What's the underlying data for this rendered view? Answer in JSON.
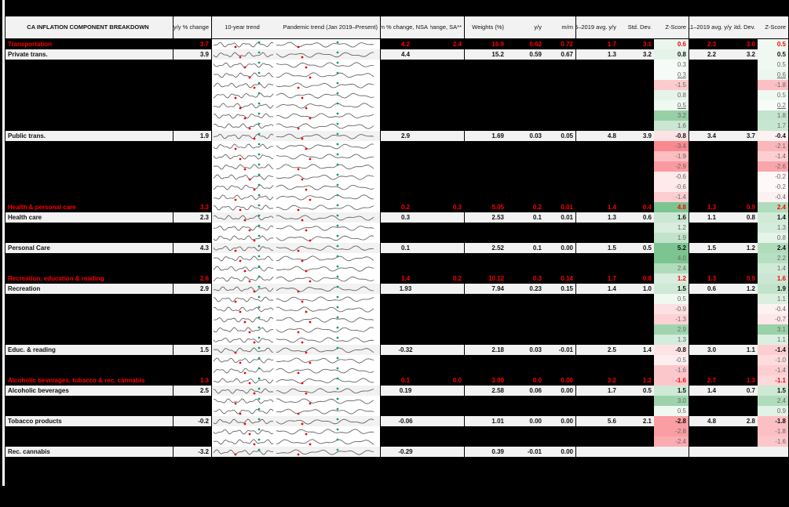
{
  "header": {
    "title": "CA INFLATION COMPONENT BREAKDOWN",
    "yy_change": "y/y % change",
    "trend10": "10-year trend",
    "pandemic_trend": "Pandemic trend (Jan 2019–Present)",
    "mm_nsa": "m/m % change, NSA",
    "mm_sa": "m/m % change, SA**",
    "weights": "Weights (%)",
    "yy": "y/y",
    "mm": "m/m",
    "avg1519": "2015–2019 avg. y/y",
    "std1": "Std. Dev.",
    "z1": "Z-Score",
    "avg1119": "2011–2019 avg. y/y",
    "std2": "Std. Dev.",
    "z2": "Z-Score"
  },
  "colors": {
    "category_text": "#ff0000",
    "sub_bg": "#f2f2f2",
    "green_strong": "#7cc490",
    "red_strong": "#f8747c"
  },
  "rows": [
    {
      "type": "cat",
      "name": "Transportation",
      "yy": "3.7",
      "mm_nsa": "4.2",
      "mm_sa": "2.4",
      "w": "16.9",
      "wyy": "0.62",
      "wmm": "0.72",
      "avg1": "1.7",
      "sd1": "3.1",
      "z1": "0.6",
      "avg2": "2.3",
      "sd2": "3.0",
      "z2": "0.5"
    },
    {
      "type": "sub",
      "name": "Private trans.",
      "yy": "3.9",
      "mm_nsa": "4.4",
      "mm_sa": "",
      "w": "15.2",
      "wyy": "0.59",
      "wmm": "0.67",
      "avg1": "1.3",
      "sd1": "3.2",
      "z1": "0.8",
      "avg2": "2.2",
      "sd2": "3.2",
      "z2": "0.5"
    },
    {
      "type": "blank",
      "z1": "0.3",
      "z2": "0.5"
    },
    {
      "type": "blank",
      "z1": "0.3",
      "z2": "0.6",
      "ul": true
    },
    {
      "type": "blank",
      "z1": "-1.5",
      "z2": "-1.8"
    },
    {
      "type": "blank",
      "z1": "0.8",
      "z2": "0.5"
    },
    {
      "type": "blank",
      "z1": "0.5",
      "z2": "0.2",
      "ul": true
    },
    {
      "type": "blank",
      "z1": "3.2",
      "z2": "1.8"
    },
    {
      "type": "blank",
      "z1": "1.6",
      "z2": "1.7"
    },
    {
      "type": "sub",
      "name": "Public trans.",
      "yy": "1.9",
      "mm_nsa": "2.9",
      "mm_sa": "",
      "w": "1.69",
      "wyy": "0.03",
      "wmm": "0.05",
      "avg1": "4.8",
      "sd1": "3.9",
      "z1": "-0.8",
      "avg2": "3.4",
      "sd2": "3.7",
      "z2": "-0.4"
    },
    {
      "type": "blank",
      "z1": "-3.4",
      "z2": "-2.1"
    },
    {
      "type": "blank",
      "z1": "-1.9",
      "z2": "-1.4"
    },
    {
      "type": "blank",
      "z1": "-2.9",
      "z2": "-2.6"
    },
    {
      "type": "blank",
      "z1": "-0.6",
      "z2": "-0.2"
    },
    {
      "type": "blank",
      "z1": "-0.6",
      "z2": "-0.2"
    },
    {
      "type": "blank",
      "z1": "-1.4",
      "z2": "-0.4"
    },
    {
      "type": "cat",
      "name": "Health & personal care",
      "yy": "3.3",
      "mm_nsa": "0.2",
      "mm_sa": "0.3",
      "w": "5.05",
      "wyy": "0.2",
      "wmm": "0.01",
      "avg1": "1.4",
      "sd1": "0.4",
      "z1": "4.8",
      "avg2": "1.3",
      "sd2": "0.9",
      "z2": "2.4"
    },
    {
      "type": "sub",
      "name": "Health care",
      "yy": "2.3",
      "mm_nsa": "0.3",
      "mm_sa": "",
      "w": "2.53",
      "wyy": "0.1",
      "wmm": "0.01",
      "avg1": "1.3",
      "sd1": "0.6",
      "z1": "1.6",
      "avg2": "1.1",
      "sd2": "0.8",
      "z2": "1.4"
    },
    {
      "type": "blank",
      "z1": "1.2",
      "z2": "1.3"
    },
    {
      "type": "blank",
      "z1": "1.9",
      "z2": "0.8"
    },
    {
      "type": "sub",
      "name": "Personal Care",
      "yy": "4.3",
      "mm_nsa": "0.1",
      "mm_sa": "",
      "w": "2.52",
      "wyy": "0.1",
      "wmm": "0.00",
      "avg1": "1.5",
      "sd1": "0.5",
      "z1": "5.2",
      "avg2": "1.5",
      "sd2": "1.2",
      "z2": "2.4"
    },
    {
      "type": "blank",
      "z1": "4.0",
      "z2": "2.2"
    },
    {
      "type": "blank",
      "z1": "2.4",
      "z2": "1.4"
    },
    {
      "type": "cat",
      "name": "Recreation, education & reading",
      "yy": "2.6",
      "mm_nsa": "1.4",
      "mm_sa": "0.2",
      "w": "10.12",
      "wyy": "0.3",
      "wmm": "0.14",
      "avg1": "1.7",
      "sd1": "0.8",
      "z1": "1.2",
      "avg2": "1.3",
      "sd2": "0.9",
      "z2": "1.6"
    },
    {
      "type": "sub",
      "name": "Recreation",
      "yy": "2.9",
      "mm_nsa": "1.93",
      "mm_sa": "",
      "w": "7.94",
      "wyy": "0.23",
      "wmm": "0.15",
      "avg1": "1.4",
      "sd1": "1.0",
      "z1": "1.5",
      "avg2": "0.6",
      "sd2": "1.2",
      "z2": "1.9"
    },
    {
      "type": "blank",
      "z1": "0.5",
      "z2": "1.1"
    },
    {
      "type": "blank",
      "z1": "-0.9",
      "z2": "-0.4"
    },
    {
      "type": "blank",
      "z1": "-1.3",
      "z2": "-0.7"
    },
    {
      "type": "blank",
      "z1": "2.9",
      "z2": "3.1"
    },
    {
      "type": "blank",
      "z1": "1.3",
      "z2": "1.1"
    },
    {
      "type": "sub",
      "name": "Educ. & reading",
      "yy": "1.5",
      "mm_nsa": "-0.32",
      "mm_sa": "",
      "w": "2.18",
      "wyy": "0.03",
      "wmm": "-0.01",
      "avg1": "2.5",
      "sd1": "1.4",
      "z1": "-0.8",
      "avg2": "3.0",
      "sd2": "1.1",
      "z2": "-1.4"
    },
    {
      "type": "blank",
      "z1": "-0.5",
      "z2": "-1.0"
    },
    {
      "type": "blank",
      "z1": "-1.6",
      "z2": "-1.4"
    },
    {
      "type": "cat",
      "name": "Alcoholic beverages, tobacco & rec. cannabis",
      "yy": "1.3",
      "mm_nsa": "0.1",
      "mm_sa": "0.0",
      "w": "3.99",
      "wyy": "0.0",
      "wmm": "0.00",
      "avg1": "3.2",
      "sd1": "1.2",
      "z1": "-1.6",
      "avg2": "2.7",
      "sd2": "1.3",
      "z2": "-1.1"
    },
    {
      "type": "sub",
      "name": "Alcoholic beverages",
      "yy": "2.5",
      "mm_nsa": "0.19",
      "mm_sa": "",
      "w": "2.58",
      "wyy": "0.06",
      "wmm": "0.00",
      "avg1": "1.7",
      "sd1": "0.5",
      "z1": "1.5",
      "avg2": "1.4",
      "sd2": "0.7",
      "z2": "1.5"
    },
    {
      "type": "blank",
      "z1": "3.0",
      "z2": "2.4"
    },
    {
      "type": "blank",
      "z1": "0.5",
      "z2": "0.9"
    },
    {
      "type": "sub",
      "name": "Tobacco products",
      "yy": "-0.2",
      "mm_nsa": "-0.06",
      "mm_sa": "",
      "w": "1.01",
      "wyy": "0.00",
      "wmm": "0.00",
      "avg1": "5.6",
      "sd1": "2.1",
      "z1": "-2.8",
      "avg2": "4.8",
      "sd2": "2.8",
      "z2": "-1.8"
    },
    {
      "type": "blank",
      "z1": "-2.8",
      "z2": "-1.8"
    },
    {
      "type": "blank",
      "z1": "-2.4",
      "z2": "-1.6"
    },
    {
      "type": "sub",
      "name": "Rec. cannabis",
      "yy": "-3.2",
      "mm_nsa": "-0.29",
      "mm_sa": "",
      "w": "0.39",
      "wyy": "-0.01",
      "wmm": "0.00",
      "avg1": "",
      "sd1": "",
      "z1": "",
      "avg2": "",
      "sd2": "",
      "z2": "",
      "nosz": true
    }
  ]
}
